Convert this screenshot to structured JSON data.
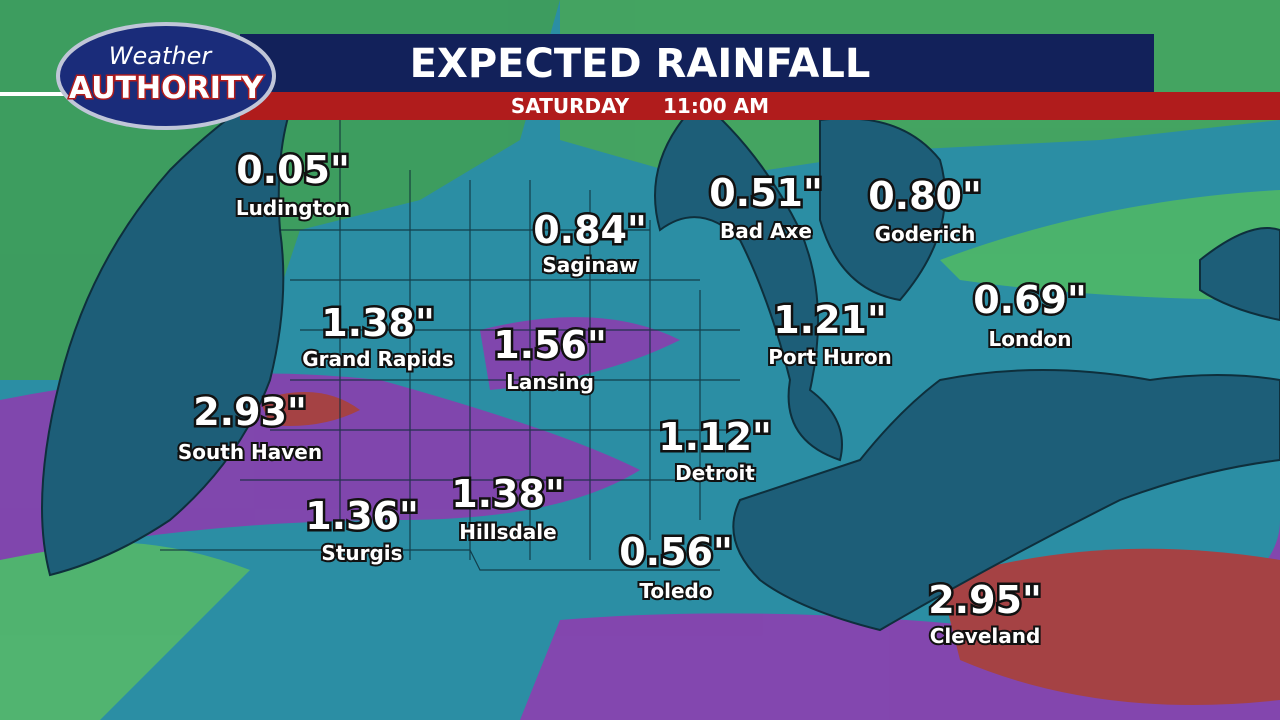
{
  "header": {
    "logo": {
      "line1": "Weather",
      "line2": "AUTHORITY"
    },
    "title": "EXPECTED RAINFALL",
    "day": "SATURDAY",
    "time": "11:00 AM"
  },
  "cities": [
    {
      "amount": "0.05\"",
      "name": "Ludington"
    },
    {
      "amount": "0.84\"",
      "name": "Saginaw"
    },
    {
      "amount": "0.51\"",
      "name": "Bad Axe"
    },
    {
      "amount": "0.80\"",
      "name": "Goderich"
    },
    {
      "amount": "0.69\"",
      "name": "London"
    },
    {
      "amount": "1.38\"",
      "name": "Grand Rapids"
    },
    {
      "amount": "1.56\"",
      "name": "Lansing"
    },
    {
      "amount": "1.21\"",
      "name": "Port Huron"
    },
    {
      "amount": "2.93\"",
      "name": "South Haven"
    },
    {
      "amount": "1.12\"",
      "name": "Detroit"
    },
    {
      "amount": "1.36\"",
      "name": "Sturgis"
    },
    {
      "amount": "1.38\"",
      "name": "Hillsdale"
    },
    {
      "amount": "0.56\"",
      "name": "Toledo"
    },
    {
      "amount": "2.95\"",
      "name": "Cleveland"
    }
  ]
}
